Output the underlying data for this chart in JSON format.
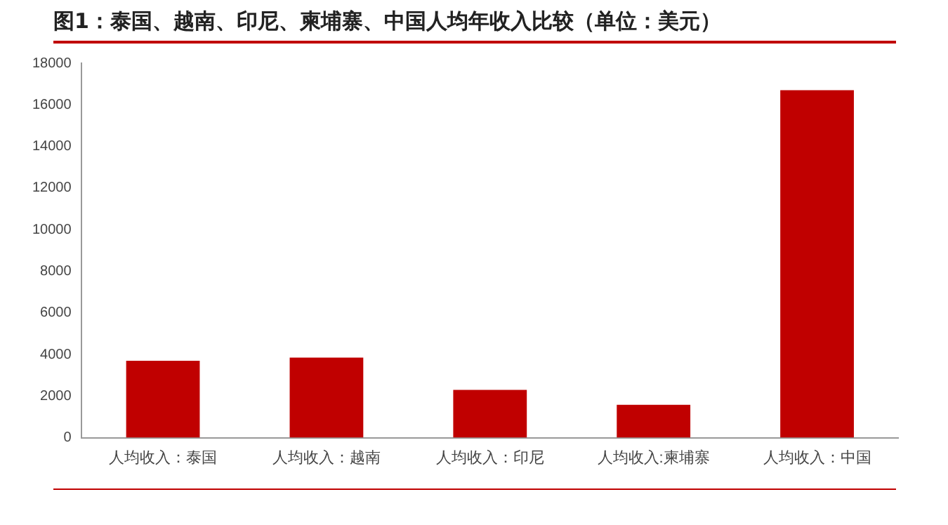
{
  "chart_data": {
    "type": "bar",
    "title": "图1：泰国、越南、印尼、柬埔寨、中国人均年收入比较（单位：美元）",
    "categories": [
      "人均收入：泰国",
      "人均收入：越南",
      "人均收入：印尼",
      "人均收入:柬埔寨",
      "人均收入：中国"
    ],
    "values": [
      3700,
      3850,
      2300,
      1580,
      16700
    ],
    "color": "#c00000",
    "ylim": [
      0,
      18000
    ],
    "yticks": [
      0,
      2000,
      4000,
      6000,
      8000,
      10000,
      12000,
      14000,
      16000,
      18000
    ],
    "grid": false,
    "legend": false
  }
}
